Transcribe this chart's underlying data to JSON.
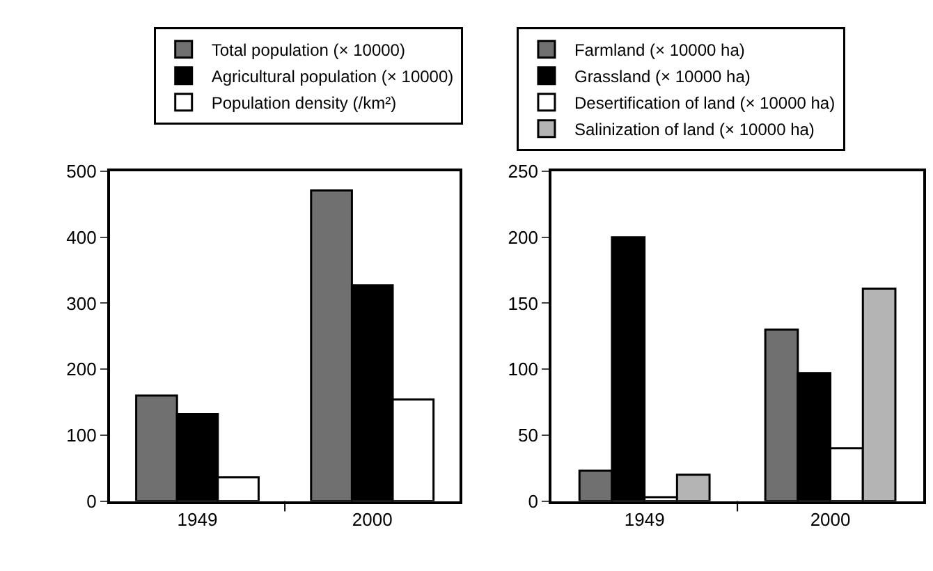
{
  "chart_data": [
    {
      "type": "bar",
      "categories": [
        "1949",
        "2000"
      ],
      "series": [
        {
          "name": "Total population (× 10000)",
          "color": "#707070",
          "values": [
            160,
            471
          ]
        },
        {
          "name": "Agricultural population (× 10000)",
          "color": "#000000",
          "values": [
            132,
            327
          ]
        },
        {
          "name": "Population density (/km²)",
          "color": "#ffffff",
          "values": [
            36,
            154
          ]
        }
      ],
      "ylim": [
        0,
        500
      ],
      "yticks": [
        0,
        100,
        200,
        300,
        400,
        500
      ],
      "legend": "top"
    },
    {
      "type": "bar",
      "categories": [
        "1949",
        "2000"
      ],
      "series": [
        {
          "name": "Farmland (× 10000 ha)",
          "color": "#707070",
          "values": [
            23,
            130
          ]
        },
        {
          "name": "Grassland (× 10000 ha)",
          "color": "#000000",
          "values": [
            200,
            97
          ]
        },
        {
          "name": "Desertification of land (× 10000 ha)",
          "color": "#ffffff",
          "values": [
            3,
            40
          ]
        },
        {
          "name": "Salinization of land (× 10000 ha)",
          "color": "#b4b4b4",
          "values": [
            20,
            161
          ]
        }
      ],
      "ylim": [
        0,
        250
      ],
      "yticks": [
        0,
        50,
        100,
        150,
        200,
        250
      ],
      "legend": "top"
    }
  ]
}
